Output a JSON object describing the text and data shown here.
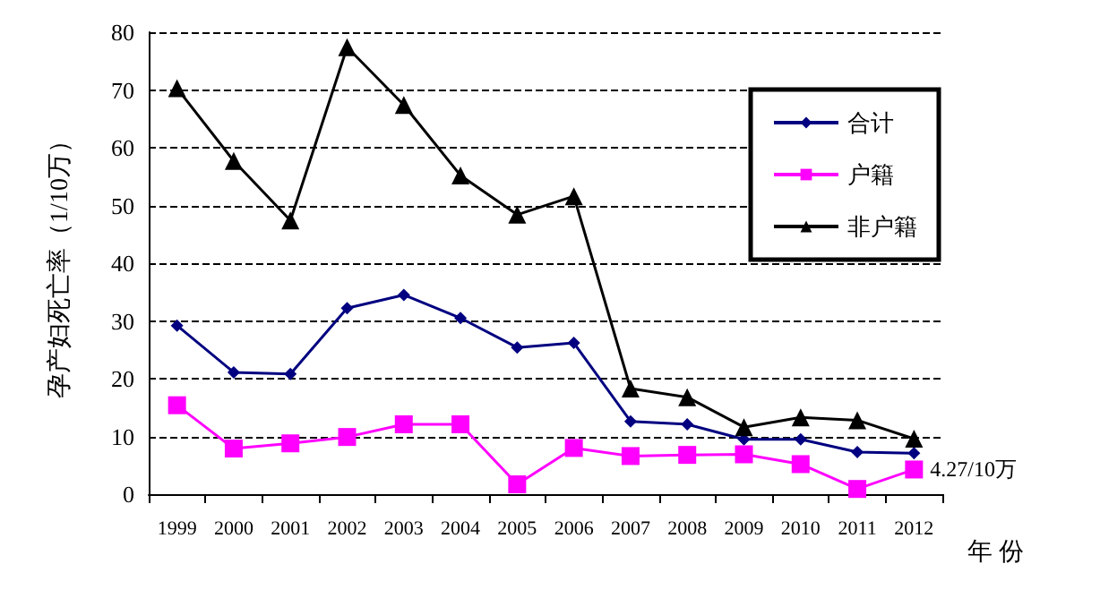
{
  "chart_data": {
    "type": "line",
    "xlabel": "年 份",
    "ylabel": "孕产妇死亡率（1/10万）",
    "categories": [
      "1999",
      "2000",
      "2001",
      "2002",
      "2003",
      "2004",
      "2005",
      "2006",
      "2007",
      "2008",
      "2009",
      "2010",
      "2011",
      "2012"
    ],
    "series": [
      {
        "name": "合计",
        "color": "#000080",
        "marker": "diamond",
        "values": [
          29.2,
          21.1,
          20.8,
          32.2,
          34.5,
          30.5,
          25.4,
          26.2,
          12.6,
          12.1,
          9.5,
          9.5,
          7.3,
          7.1
        ]
      },
      {
        "name": "户籍",
        "color": "#ff00ff",
        "marker": "square",
        "values": [
          15.4,
          7.9,
          8.8,
          9.9,
          12.1,
          12.1,
          1.7,
          8.0,
          6.6,
          6.8,
          6.9,
          5.2,
          0.9,
          4.27
        ]
      },
      {
        "name": "非户籍",
        "color": "#000000",
        "marker": "triangle",
        "values": [
          70.3,
          57.7,
          47.4,
          77.4,
          67.4,
          55.2,
          48.4,
          51.6,
          18.3,
          16.8,
          11.6,
          13.3,
          12.8,
          9.6
        ]
      }
    ],
    "ylim": [
      0,
      80
    ],
    "yticks": [
      0,
      10,
      20,
      30,
      40,
      50,
      60,
      70,
      80
    ],
    "grid": "y",
    "legend": "top right",
    "annotations": [
      {
        "text": "4.27/10万",
        "x": "2012",
        "y": 4.27
      }
    ]
  }
}
